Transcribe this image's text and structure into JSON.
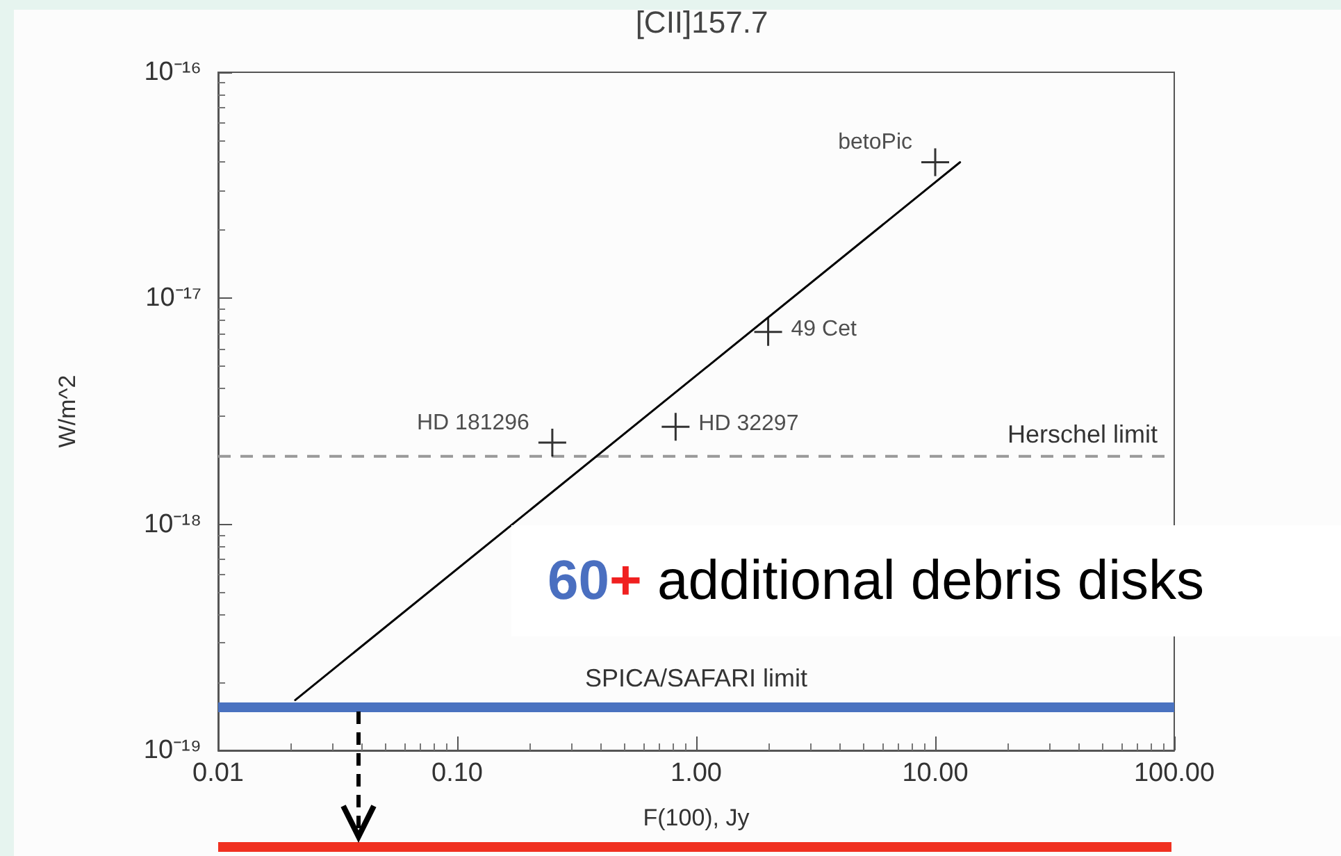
{
  "chart_data": {
    "type": "scatter",
    "title": "[CII]157.7",
    "xlabel": "F(100), Jy",
    "ylabel": "W/m^2",
    "log": "xy",
    "grid": false,
    "marker": "cross",
    "xlim": [
      0.01,
      100
    ],
    "xticks": [
      {
        "value": 0.01,
        "label": "0.01"
      },
      {
        "value": 0.1,
        "label": "0.10"
      },
      {
        "value": 1,
        "label": "1.00"
      },
      {
        "value": 10,
        "label": "10.00"
      },
      {
        "value": 100,
        "label": "100.00"
      }
    ],
    "ylim": [
      1e-19,
      1e-16
    ],
    "yticks": [
      {
        "value": 1e-19,
        "label": "10⁻¹⁹"
      },
      {
        "value": 1e-18,
        "label": "10⁻¹⁸"
      },
      {
        "value": 1e-17,
        "label": "10⁻¹⁷"
      },
      {
        "value": 1e-16,
        "label": "10⁻¹⁶"
      }
    ],
    "series": [
      {
        "color": "#000000",
        "x": [
          10,
          2,
          0.82,
          0.25
        ],
        "values": [
          4e-17,
          7.1e-18,
          2.7e-18,
          2.3e-18
        ]
      },
      {
        "type": "line",
        "color": "#000000",
        "marker": "none",
        "line_style": "solid",
        "x": [
          0.021,
          12.7
        ],
        "values": [
          1.67e-19,
          4e-17
        ]
      }
    ],
    "ref_lines": [
      {
        "axis": "y",
        "value": 2e-18,
        "label": "Herschel limit",
        "color": "#999999",
        "line_style": "dashed"
      },
      {
        "axis": "y",
        "value": 1.55e-19,
        "label": "SPICA/SAFARI limit",
        "color": "#4a72c0",
        "line_style": "solid"
      }
    ],
    "annotations": [
      {
        "text": "betoPic",
        "x": 10,
        "y": 4e-17
      },
      {
        "text": "49 Cet",
        "x": 2,
        "y": 7.1e-18
      },
      {
        "text": "HD 32297",
        "x": 0.82,
        "y": 2.7e-18
      },
      {
        "text": "HD 181296",
        "x": 0.25,
        "y": 2.3e-18
      },
      "60+ additional debris disks"
    ]
  }
}
